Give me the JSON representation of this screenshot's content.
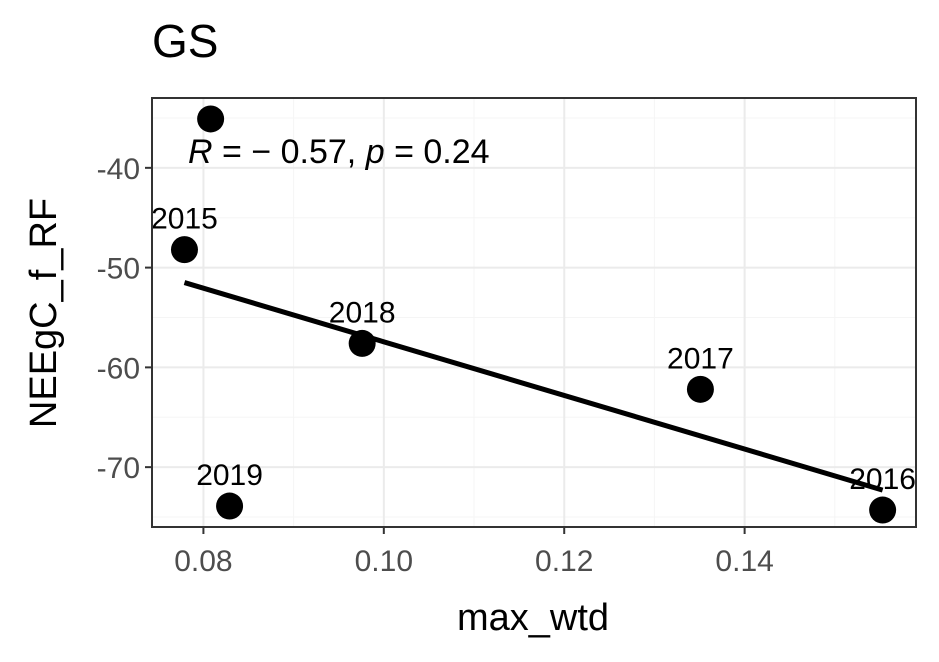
{
  "chart_data": {
    "type": "scatter",
    "title": "GS",
    "xlabel": "max_wtd",
    "ylabel": "NEEgC_f_RF",
    "xlim": [
      0.0743,
      0.159
    ],
    "ylim": [
      -76.0,
      -33.0
    ],
    "x_ticks": [
      0.08,
      0.1,
      0.12,
      0.14
    ],
    "x_tick_labels": [
      "0.08",
      "0.10",
      "0.12",
      "0.14"
    ],
    "y_ticks": [
      -40,
      -50,
      -60,
      -70
    ],
    "y_tick_labels": [
      "-40",
      "-50",
      "-60",
      "-70"
    ],
    "grid": true,
    "points": [
      {
        "x": 0.0808,
        "y": -35.1,
        "label": ""
      },
      {
        "x": 0.0779,
        "y": -48.2,
        "label": "2015"
      },
      {
        "x": 0.0976,
        "y": -57.6,
        "label": "2018"
      },
      {
        "x": 0.1351,
        "y": -62.2,
        "label": "2017"
      },
      {
        "x": 0.1553,
        "y": -74.3,
        "label": "2016"
      },
      {
        "x": 0.0829,
        "y": -73.9,
        "label": "2019"
      }
    ],
    "regression": {
      "x_start": 0.0779,
      "y_start": -51.5,
      "x_end": 0.1553,
      "y_end": -72.3
    },
    "annotation": {
      "r_symbol": "R",
      "r_value": "= − 0.57,",
      "p_symbol": "p",
      "p_value": "= 0.24"
    },
    "colors": {
      "point": "#000000",
      "line": "#000000",
      "grid_major": "#ebebeb",
      "grid_minor": "#f5f5f5",
      "panel_border": "#333333"
    }
  }
}
